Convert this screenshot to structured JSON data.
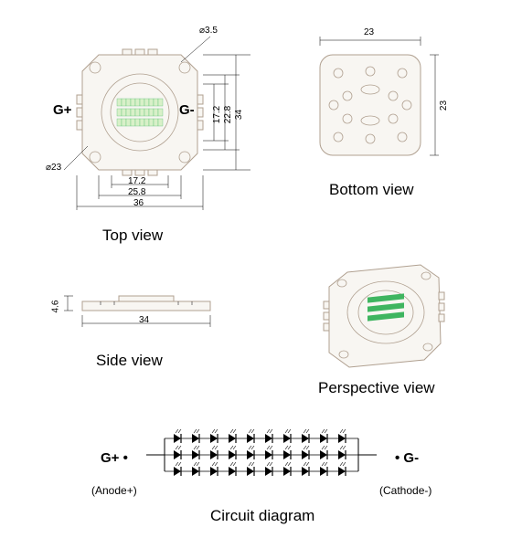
{
  "labels": {
    "top_view": "Top view",
    "bottom_view": "Bottom view",
    "side_view": "Side view",
    "perspective_view": "Perspective view",
    "circuit_diagram": "Circuit diagram",
    "g_plus": "G+",
    "g_minus": "G-",
    "g_plus_dot": "G+",
    "g_minus_dot": "G-",
    "anode": "(Anode+)",
    "cathode": "(Cathode-)"
  },
  "top_view": {
    "dims": {
      "outer_w": "36",
      "pad_w": "25.8",
      "inner_w": "17.2",
      "lens_d": "17.2",
      "ring_d": "22.8",
      "outer_h": "34",
      "hole_d": "⌀3.5",
      "chamfer_d": "⌀23"
    },
    "colors": {
      "body_fill": "#f8f6f2",
      "body_stroke": "#b0a090",
      "led_green": "#3fb560",
      "led_die": "#d8f0c8"
    }
  },
  "bottom_view": {
    "dims": {
      "w": "23",
      "h": "23"
    }
  },
  "side_view": {
    "dims": {
      "w": "34",
      "h": "4.6"
    }
  },
  "circuit": {
    "rows": 3,
    "cols": 10,
    "diode_color": "#000000"
  }
}
